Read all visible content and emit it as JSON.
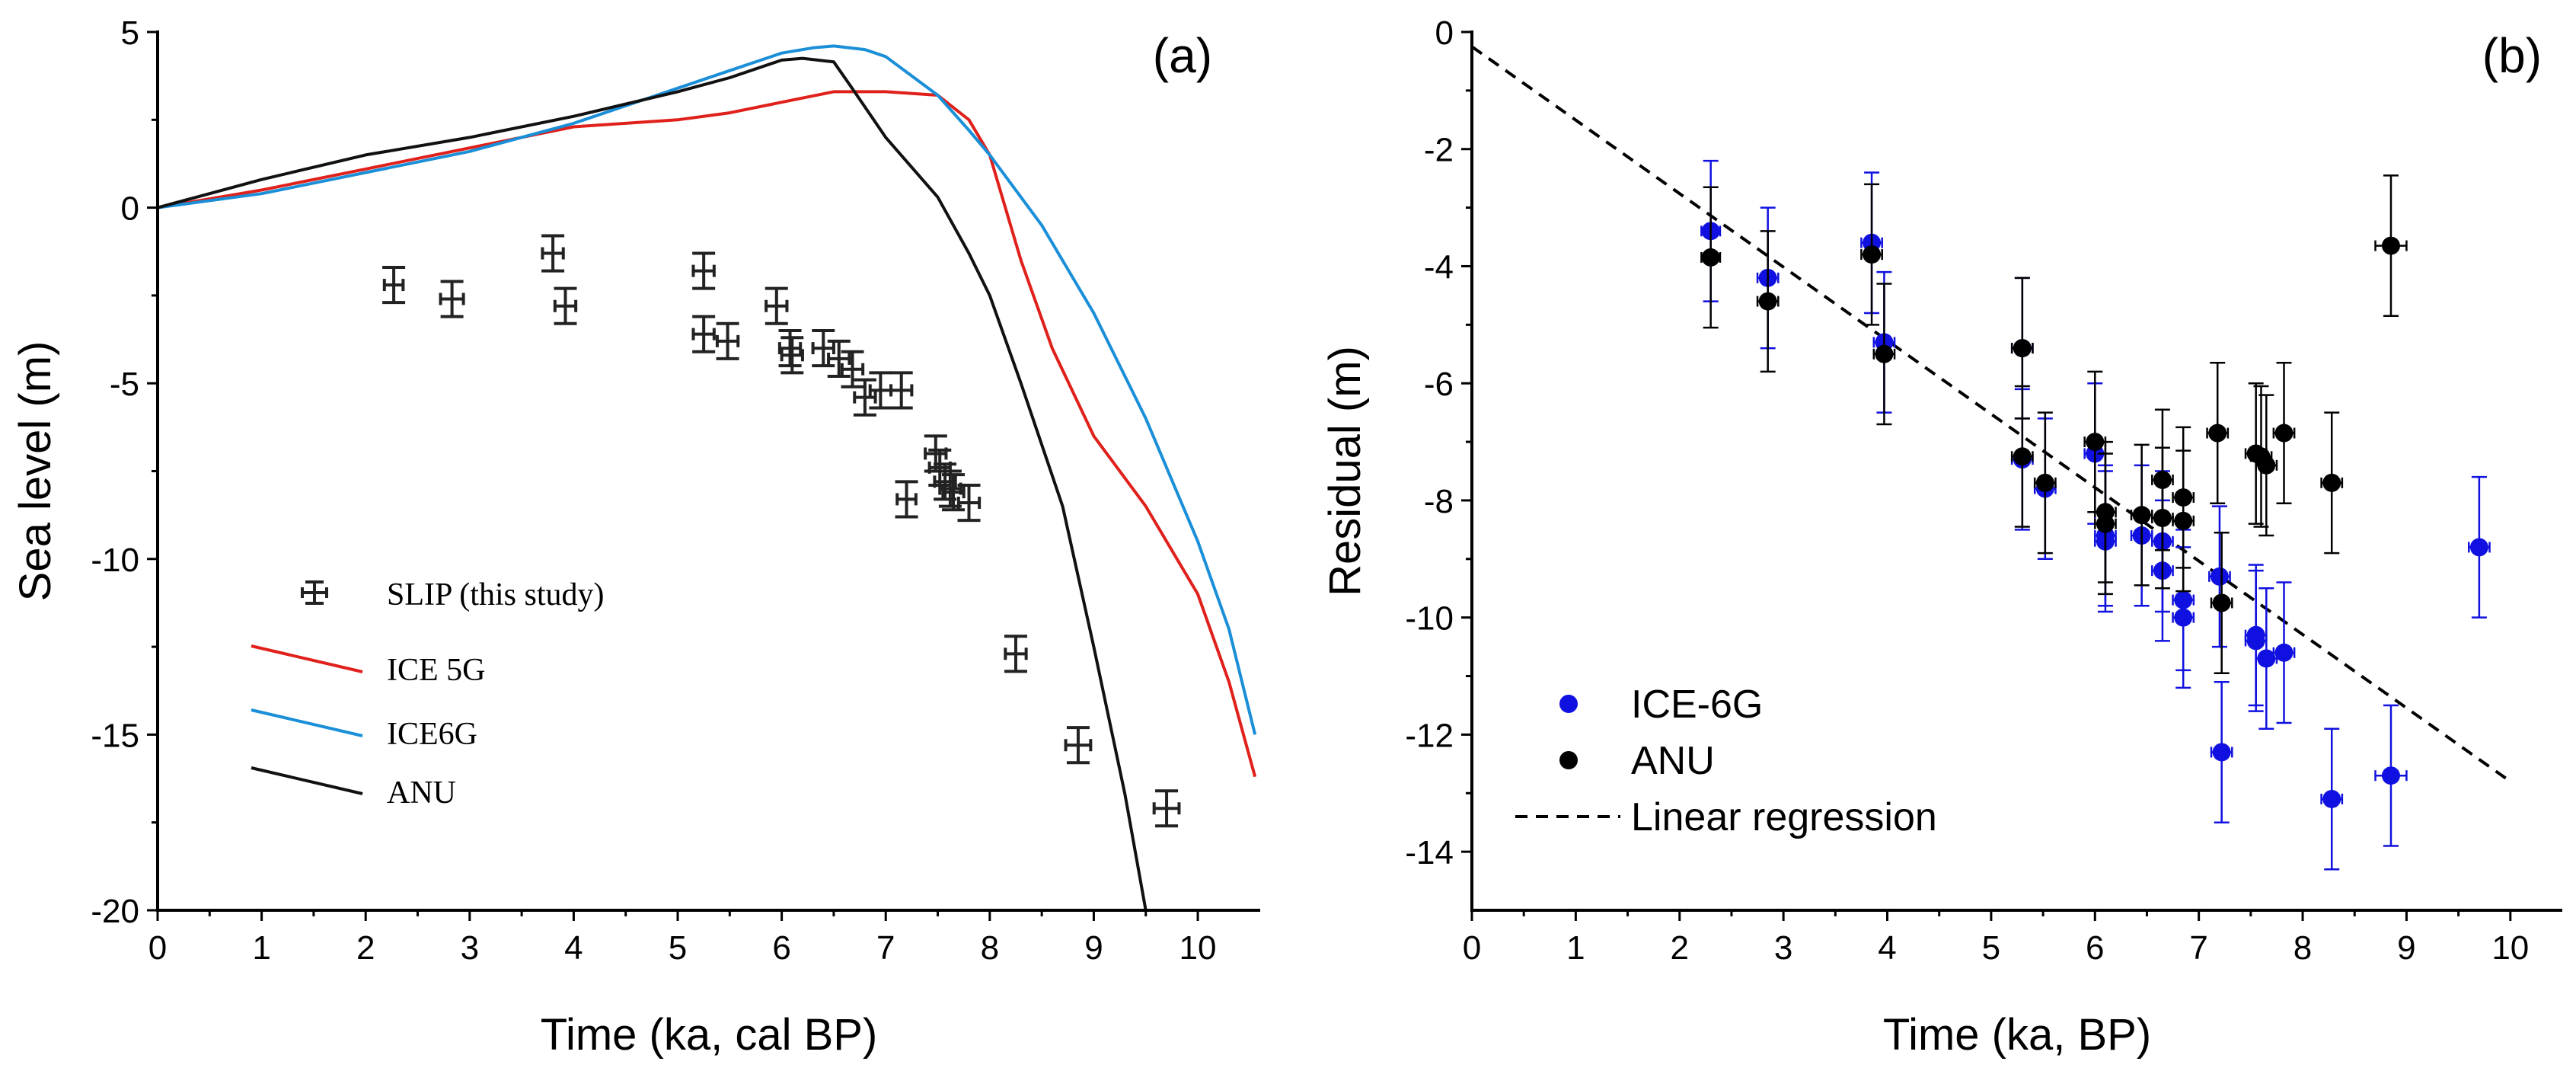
{
  "chart_data": [
    {
      "panel_label": "(a)",
      "type": "line",
      "xlabel": "Time (ka, cal BP)",
      "ylabel": "Sea level (m)",
      "xlim": [
        0,
        10.6
      ],
      "ylim": [
        -20,
        5
      ],
      "xticks": [
        0,
        1,
        2,
        3,
        4,
        5,
        6,
        7,
        8,
        9,
        10
      ],
      "yticks": [
        5,
        0,
        -5,
        -10,
        -15,
        -20
      ],
      "legend_position": "center-left",
      "series": [
        {
          "name": "ICE 5G",
          "type": "line",
          "color": "#e0201b",
          "x": [
            0,
            1,
            2,
            3,
            4,
            5,
            5.5,
            6,
            6.5,
            7,
            7.5,
            7.8,
            8,
            8.3,
            8.6,
            9,
            9.5,
            10,
            10.3,
            10.55
          ],
          "y": [
            0,
            0.5,
            1.1,
            1.7,
            2.3,
            2.5,
            2.7,
            3.0,
            3.3,
            3.3,
            3.2,
            2.5,
            1.5,
            -1.5,
            -4.0,
            -6.5,
            -8.5,
            -11.0,
            -13.5,
            -16.2
          ]
        },
        {
          "name": "ICE6G",
          "type": "line",
          "color": "#1a8fd8",
          "x": [
            0,
            1,
            2,
            3,
            4,
            5,
            5.5,
            6,
            6.3,
            6.5,
            6.8,
            7,
            7.5,
            7.8,
            8,
            8.5,
            9,
            9.5,
            10,
            10.3,
            10.55
          ],
          "y": [
            0,
            0.4,
            1.0,
            1.6,
            2.4,
            3.4,
            3.9,
            4.4,
            4.55,
            4.6,
            4.5,
            4.3,
            3.2,
            2.2,
            1.5,
            -0.5,
            -3.0,
            -6.0,
            -9.5,
            -12.0,
            -15.0
          ]
        },
        {
          "name": "ANU",
          "type": "line",
          "color": "#111111",
          "x": [
            0,
            1,
            2,
            3,
            4,
            5,
            5.5,
            6,
            6.2,
            6.5,
            6.7,
            7,
            7.5,
            7.8,
            8,
            8.3,
            8.7,
            9,
            9.3,
            9.5
          ],
          "y": [
            0,
            0.8,
            1.5,
            2.0,
            2.6,
            3.3,
            3.7,
            4.2,
            4.25,
            4.15,
            3.3,
            2.0,
            0.3,
            -1.3,
            -2.5,
            -5.0,
            -8.5,
            -12.5,
            -16.7,
            -20.0
          ]
        },
        {
          "name": "SLIP (this study)",
          "type": "scatter-errorbar",
          "color": "#222222",
          "x": [
            2.27,
            2.83,
            3.8,
            3.92,
            5.25,
            5.25,
            5.48,
            5.95,
            6.08,
            6.1,
            6.4,
            6.55,
            6.68,
            6.8,
            6.95,
            7.15,
            7.2,
            7.48,
            7.52,
            7.57,
            7.62,
            7.65,
            7.8,
            8.25,
            8.85,
            9.7
          ],
          "y": [
            -2.2,
            -2.6,
            -1.3,
            -2.8,
            -1.8,
            -3.6,
            -3.8,
            -2.8,
            -4.0,
            -4.2,
            -4.0,
            -4.3,
            -4.6,
            -5.4,
            -5.2,
            -5.2,
            -8.3,
            -7.0,
            -7.4,
            -7.8,
            -8.0,
            -8.1,
            -8.4,
            -12.7,
            -15.3,
            -17.1
          ],
          "xerr": [
            0.09,
            0.11,
            0.1,
            0.1,
            0.1,
            0.1,
            0.1,
            0.1,
            0.1,
            0.1,
            0.1,
            0.1,
            0.1,
            0.1,
            0.1,
            0.1,
            0.09,
            0.1,
            0.1,
            0.1,
            0.1,
            0.1,
            0.1,
            0.1,
            0.12,
            0.12
          ],
          "yerr": [
            0.5,
            0.5,
            0.5,
            0.5,
            0.5,
            0.5,
            0.5,
            0.5,
            0.5,
            0.5,
            0.5,
            0.5,
            0.5,
            0.5,
            0.5,
            0.5,
            0.5,
            0.5,
            0.5,
            0.5,
            0.5,
            0.5,
            0.5,
            0.5,
            0.5,
            0.5
          ]
        }
      ]
    },
    {
      "panel_label": "(b)",
      "type": "scatter",
      "xlabel": "Time (ka, BP)",
      "ylabel": "Residual (m)",
      "xlim": [
        0,
        10.5
      ],
      "ylim": [
        -15,
        0
      ],
      "xticks": [
        0,
        1,
        2,
        3,
        4,
        5,
        6,
        7,
        8,
        9,
        10
      ],
      "yticks": [
        0,
        -2,
        -4,
        -6,
        -8,
        -10,
        -12,
        -14
      ],
      "legend_position": "bottom-left",
      "series": [
        {
          "name": "ICE-6G",
          "type": "scatter-errorbar",
          "color": "#1010e0",
          "x": [
            2.3,
            2.85,
            3.85,
            3.97,
            5.3,
            5.3,
            5.52,
            6.0,
            6.1,
            6.1,
            6.45,
            6.65,
            6.65,
            6.85,
            6.85,
            7.2,
            7.22,
            7.55,
            7.55,
            7.65,
            7.82,
            8.28,
            8.85,
            9.7
          ],
          "y": [
            -3.4,
            -4.2,
            -3.6,
            -5.3,
            -5.4,
            -7.3,
            -7.8,
            -7.2,
            -8.6,
            -8.7,
            -8.6,
            -8.7,
            -9.2,
            -9.7,
            -10.0,
            -9.3,
            -12.3,
            -10.3,
            -10.4,
            -10.7,
            -10.6,
            -13.1,
            -12.7,
            -8.8
          ],
          "xerr": [
            0.09,
            0.1,
            0.1,
            0.1,
            0.1,
            0.1,
            0.1,
            0.1,
            0.1,
            0.1,
            0.1,
            0.1,
            0.1,
            0.1,
            0.1,
            0.1,
            0.1,
            0.1,
            0.1,
            0.1,
            0.1,
            0.1,
            0.15,
            0.1
          ],
          "yerr": [
            1.2,
            1.2,
            1.2,
            1.2,
            1.2,
            1.2,
            1.2,
            1.2,
            1.2,
            1.2,
            1.2,
            1.2,
            1.2,
            1.2,
            1.2,
            1.2,
            1.2,
            1.2,
            1.2,
            1.2,
            1.2,
            1.2,
            1.2,
            1.2
          ]
        },
        {
          "name": "ANU",
          "type": "scatter-errorbar",
          "color": "#000000",
          "x": [
            2.3,
            2.85,
            3.85,
            3.97,
            5.3,
            5.3,
            5.52,
            6.0,
            6.1,
            6.1,
            6.45,
            6.65,
            6.65,
            6.85,
            6.85,
            7.18,
            7.22,
            7.55,
            7.6,
            7.65,
            7.82,
            8.28,
            8.85
          ],
          "y": [
            -3.85,
            -4.6,
            -3.8,
            -5.5,
            -5.4,
            -7.25,
            -7.7,
            -7.0,
            -8.2,
            -8.4,
            -8.25,
            -7.65,
            -8.3,
            -7.95,
            -8.35,
            -6.85,
            -9.75,
            -7.2,
            -7.25,
            -7.4,
            -6.85,
            -7.7,
            -3.65
          ],
          "xerr": [
            0.09,
            0.1,
            0.1,
            0.1,
            0.1,
            0.1,
            0.1,
            0.1,
            0.1,
            0.1,
            0.1,
            0.1,
            0.1,
            0.1,
            0.1,
            0.1,
            0.1,
            0.1,
            0.1,
            0.1,
            0.1,
            0.1,
            0.15
          ],
          "yerr": [
            1.2,
            1.2,
            1.2,
            1.2,
            1.2,
            1.2,
            1.2,
            1.2,
            1.2,
            1.2,
            1.2,
            1.2,
            1.2,
            1.2,
            1.2,
            1.2,
            1.2,
            1.2,
            1.2,
            1.2,
            1.2,
            1.2,
            1.2
          ]
        },
        {
          "name": "Linear regression",
          "type": "line-dashed",
          "color": "#000000",
          "x": [
            0,
            10
          ],
          "y": [
            -0.25,
            -12.8
          ]
        }
      ]
    }
  ]
}
